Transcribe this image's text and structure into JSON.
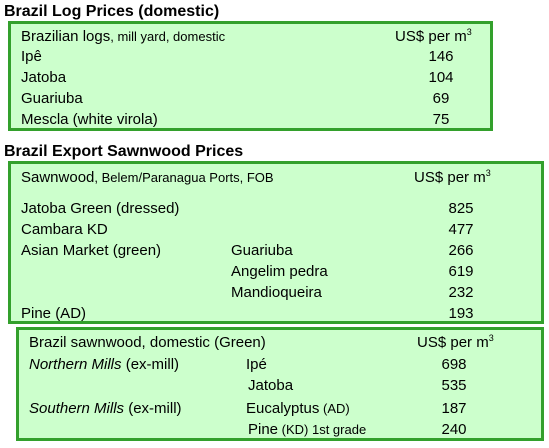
{
  "log_section": {
    "title": "Brazil Log Prices (domestic)",
    "header_label": "Brazilian logs",
    "header_sub": ", mill yard, domestic",
    "unit_text": "US$ per m",
    "unit_sup": "3",
    "rows": [
      {
        "name": "Ipê",
        "price": "146"
      },
      {
        "name": "Jatoba",
        "price": "104"
      },
      {
        "name": "Guariuba",
        "price": "69"
      },
      {
        "name": "Mescla (white virola)",
        "price": "75"
      }
    ]
  },
  "export_section": {
    "title": "Brazil Export Sawnwood Prices",
    "header_label": "Sawnwood",
    "header_sub": ", Belem/Paranagua Ports, FOB",
    "unit_text": "US$ per m",
    "unit_sup": "3",
    "rows": [
      {
        "name": "Jatoba Green (dressed)",
        "price": "825"
      },
      {
        "name": "Cambara KD",
        "price": "477"
      },
      {
        "name": "Asian Market (green)",
        "species": "Guariuba",
        "price": "266"
      },
      {
        "species": "Angelim pedra",
        "price": "619"
      },
      {
        "species": "Mandioqueira",
        "price": "232"
      },
      {
        "name": "Pine (AD)",
        "price": "193"
      }
    ]
  },
  "domestic_section": {
    "header_label": "Brazil sawnwood, domestic (Green)",
    "unit_text": "US$ per m",
    "unit_sup": "3",
    "northern": {
      "region": "Northern Mills",
      "qualifier": " (ex-mill)"
    },
    "southern": {
      "region": "Southern Mills",
      "qualifier": " (ex-mill)"
    },
    "rows": [
      {
        "species": "Ipé",
        "price": "698"
      },
      {
        "species": "Jatoba",
        "price": "535"
      },
      {
        "species": "Eucalyptus",
        "species_sub": " (AD)",
        "price": "187"
      },
      {
        "species": "Pine",
        "species_sub": " (KD) 1st grade",
        "price": "240"
      }
    ]
  }
}
